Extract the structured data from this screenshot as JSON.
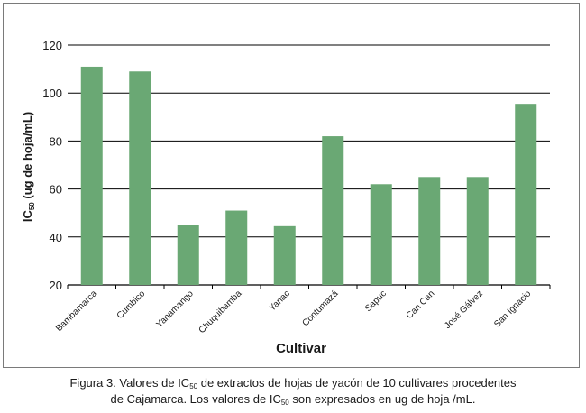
{
  "chart_data": {
    "type": "bar",
    "categories": [
      "Bambamarca",
      "Cumbico",
      "Yanamango",
      "Chuquibamba",
      "Yanac",
      "Contumazá",
      "Sapuc",
      "Can Can",
      "José Gálvez",
      "San Ignacio"
    ],
    "values": [
      111,
      109,
      45,
      51,
      44.5,
      82,
      62,
      65,
      65,
      95.5
    ],
    "xlabel": "Cultivar",
    "ylabel": {
      "main": "IC",
      "sub": "50",
      "rest": " (ug de hoja/mL)"
    },
    "ylim": [
      20,
      120
    ],
    "yticks": [
      20,
      40,
      60,
      80,
      100,
      120
    ],
    "grid": true,
    "bar_color": "#6aa874"
  },
  "caption": {
    "line1_a": "Figura 3. Valores de IC",
    "line1_sub": "50",
    "line1_b": " de extractos de hojas de yacón de 10 cultivares procedentes",
    "line2_a": "de Cajamarca. Los valores de IC",
    "line2_sub": "50",
    "line2_b": " son expresados en ug de hoja /mL."
  }
}
